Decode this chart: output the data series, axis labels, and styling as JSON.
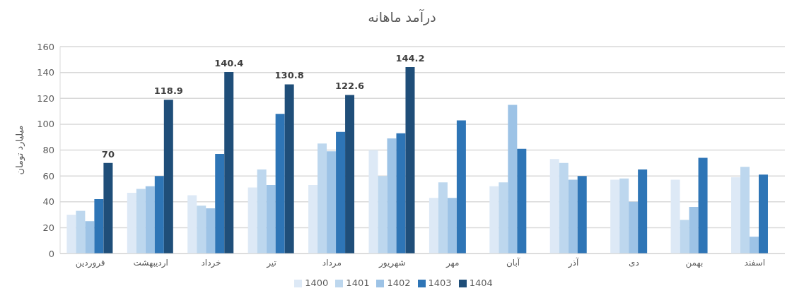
{
  "chart_data": {
    "type": "bar",
    "title": "درآمد ماهانه",
    "ylabel": "میلیارد تومان",
    "categories": [
      "فروردین",
      "اردیبهشت",
      "خرداد",
      "تیر",
      "مرداد",
      "شهریور",
      "مهر",
      "آبان",
      "آذر",
      "دی",
      "بهمن",
      "اسفند"
    ],
    "series": [
      {
        "name": "1400",
        "color": "#dde9f6",
        "values": [
          30,
          47,
          45,
          51,
          53,
          80,
          43,
          52,
          73,
          57,
          57,
          59
        ]
      },
      {
        "name": "1401",
        "color": "#bdd7ee",
        "values": [
          33,
          50,
          37,
          65,
          85,
          60,
          55,
          55,
          70,
          58,
          26,
          67
        ]
      },
      {
        "name": "1402",
        "color": "#9dc3e6",
        "values": [
          25,
          52,
          35,
          53,
          79,
          89,
          43,
          115,
          57,
          40,
          36,
          13
        ]
      },
      {
        "name": "1403",
        "color": "#2e75b6",
        "values": [
          42,
          60,
          77,
          108,
          94,
          93,
          103,
          81,
          60,
          65,
          74,
          61
        ]
      },
      {
        "name": "1404",
        "color": "#1f4e79",
        "values": [
          70,
          118.9,
          140.4,
          130.8,
          122.6,
          144.2,
          null,
          null,
          null,
          null,
          null,
          null
        ],
        "value_labels": [
          "70",
          "118.9",
          "140.4",
          "130.8",
          "122.6",
          "144.2",
          null,
          null,
          null,
          null,
          null,
          null
        ]
      }
    ],
    "ylim": [
      0,
      160
    ],
    "yticks": [
      0,
      20,
      40,
      60,
      80,
      100,
      120,
      140,
      160
    ],
    "grid": "y",
    "legend": "bottom"
  }
}
